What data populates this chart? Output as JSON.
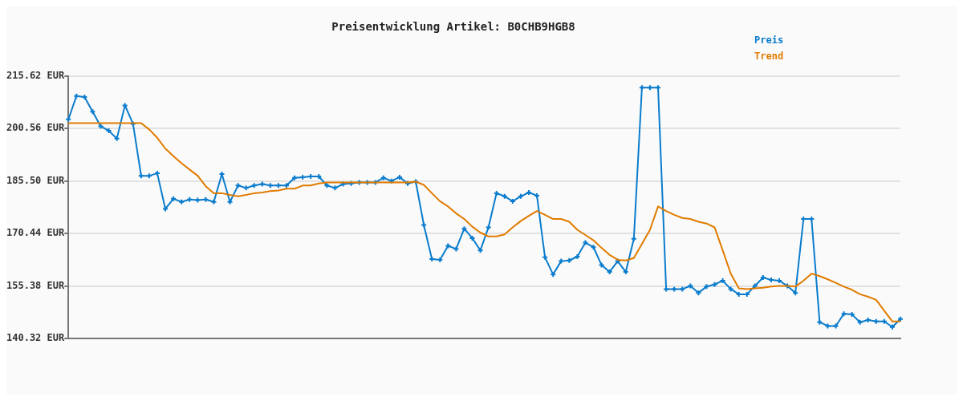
{
  "chart_data": {
    "type": "line",
    "title": "Preisentwicklung Artikel: B0CHB9HGB8",
    "categories": [
      null,
      null,
      null,
      null,
      null,
      null,
      null,
      null,
      null,
      null,
      null,
      null,
      null,
      null,
      null,
      null,
      null,
      null,
      null,
      null,
      null,
      null,
      null,
      null,
      null,
      null,
      null,
      null,
      null,
      null,
      null,
      null,
      null,
      null,
      null,
      null,
      null,
      null,
      null,
      null,
      null,
      null,
      null,
      null,
      null,
      null,
      null,
      null,
      null,
      null,
      null,
      null,
      null,
      null,
      null,
      null,
      null,
      null,
      null,
      null,
      null,
      null,
      null,
      null,
      null,
      null,
      null,
      null,
      null,
      null,
      null,
      null,
      null,
      null,
      null,
      null,
      null,
      null,
      null,
      null,
      null,
      null,
      null,
      null,
      null,
      null,
      null,
      null,
      null,
      null,
      null,
      null,
      null,
      null,
      null,
      null,
      null,
      null,
      null,
      null,
      null,
      null,
      null,
      null
    ],
    "series": [
      {
        "name": "Preis",
        "color": "#0a7ccd",
        "marker": "cross",
        "values": [
          203.2,
          209.9,
          209.6,
          205.4,
          201.2,
          199.9,
          197.7,
          207.2,
          201.9,
          187.0,
          187.0,
          187.7,
          177.5,
          180.4,
          179.5,
          180.2,
          180.0,
          180.2,
          179.5,
          187.5,
          179.5,
          184.2,
          183.5,
          184.2,
          184.6,
          184.2,
          184.2,
          184.2,
          186.4,
          186.6,
          186.8,
          186.8,
          184.2,
          183.5,
          184.6,
          184.8,
          185.1,
          185.1,
          185.1,
          186.4,
          185.5,
          186.6,
          184.8,
          185.3,
          172.9,
          163.1,
          162.9,
          166.9,
          166.0,
          171.8,
          169.1,
          165.6,
          172.2,
          182.0,
          181.1,
          179.7,
          181.1,
          182.2,
          181.3,
          163.6,
          158.7,
          162.5,
          162.7,
          163.8,
          167.8,
          166.5,
          161.4,
          159.4,
          162.5,
          159.4,
          168.9,
          212.3,
          212.3,
          212.3,
          154.5,
          154.5,
          154.5,
          155.4,
          153.4,
          155.2,
          155.8,
          156.9,
          154.5,
          153.0,
          153.0,
          155.4,
          157.8,
          157.1,
          156.9,
          155.4,
          153.4,
          174.6,
          174.6,
          145.0,
          143.9,
          143.9,
          147.4,
          147.2,
          145.0,
          145.6,
          145.2,
          145.2,
          143.6,
          145.9
        ]
      },
      {
        "name": "Trend",
        "color": "#e07b00",
        "marker": "none",
        "values": [
          202.1,
          202.1,
          202.1,
          202.1,
          202.1,
          202.1,
          202.1,
          202.1,
          202.1,
          202.1,
          200.3,
          197.9,
          194.8,
          192.6,
          190.6,
          188.8,
          187.0,
          184.0,
          182.0,
          182.0,
          181.5,
          181.1,
          181.5,
          182.0,
          182.2,
          182.6,
          182.8,
          183.3,
          183.3,
          184.2,
          184.2,
          184.8,
          185.1,
          185.1,
          185.1,
          185.1,
          185.1,
          185.1,
          185.1,
          185.1,
          185.1,
          185.1,
          185.1,
          185.3,
          184.4,
          182.0,
          179.7,
          178.2,
          176.2,
          174.6,
          172.4,
          170.7,
          169.6,
          169.6,
          170.2,
          172.2,
          174.0,
          175.5,
          176.9,
          175.8,
          174.6,
          174.6,
          173.8,
          171.5,
          170.0,
          168.5,
          166.3,
          164.3,
          162.9,
          162.7,
          163.4,
          167.4,
          171.5,
          178.2,
          176.9,
          175.8,
          174.9,
          174.6,
          173.8,
          173.3,
          172.2,
          165.6,
          158.9,
          154.7,
          154.5,
          154.7,
          154.9,
          155.2,
          155.4,
          155.4,
          155.2,
          156.9,
          158.9,
          158.2,
          157.3,
          156.3,
          155.2,
          154.3,
          153.0,
          152.3,
          151.4,
          148.3,
          145.2,
          145.2
        ]
      }
    ],
    "ylim": [
      140.32,
      215.62
    ],
    "yticks": [
      {
        "value": 140.32,
        "label": "140.32 EUR"
      },
      {
        "value": 155.38,
        "label": "155.38 EUR"
      },
      {
        "value": 170.44,
        "label": "170.44 EUR"
      },
      {
        "value": 185.5,
        "label": "185.50 EUR"
      },
      {
        "value": 200.56,
        "label": "200.56 EUR"
      },
      {
        "value": 215.62,
        "label": "215.62 EUR"
      }
    ],
    "grid": "y",
    "legend": "top right",
    "line_style": "solid",
    "tick_labels": "y"
  }
}
